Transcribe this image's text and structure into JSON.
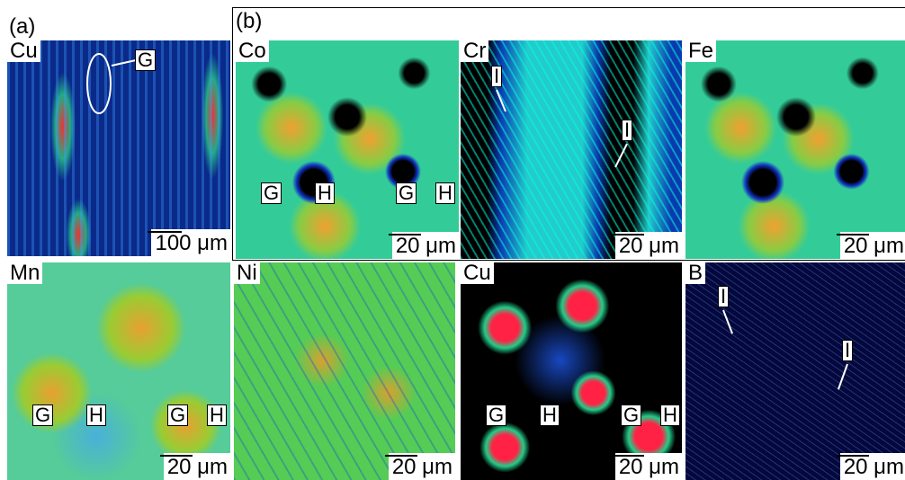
{
  "panel_a": {
    "label": "(a)",
    "element": "Cu",
    "markers": [
      "G"
    ],
    "scale": "100 μm"
  },
  "panel_b": {
    "label": "(b)",
    "maps": [
      {
        "element": "Co",
        "markers": [
          "G",
          "H",
          "G",
          "H"
        ],
        "scale": "20 μm"
      },
      {
        "element": "Cr",
        "markers": [
          "I",
          "I"
        ],
        "scale": "20 μm"
      },
      {
        "element": "Fe",
        "markers": [],
        "scale": "20 μm"
      },
      {
        "element": "Mn",
        "markers": [
          "G",
          "H",
          "G",
          "H"
        ],
        "scale": "20 μm"
      },
      {
        "element": "Ni",
        "markers": [],
        "scale": "20 μm"
      },
      {
        "element": "Cu",
        "markers": [
          "G",
          "H",
          "G",
          "H"
        ],
        "scale": "20 μm"
      },
      {
        "element": "B",
        "markers": [
          "I",
          "I"
        ],
        "scale": "20 μm"
      }
    ]
  }
}
